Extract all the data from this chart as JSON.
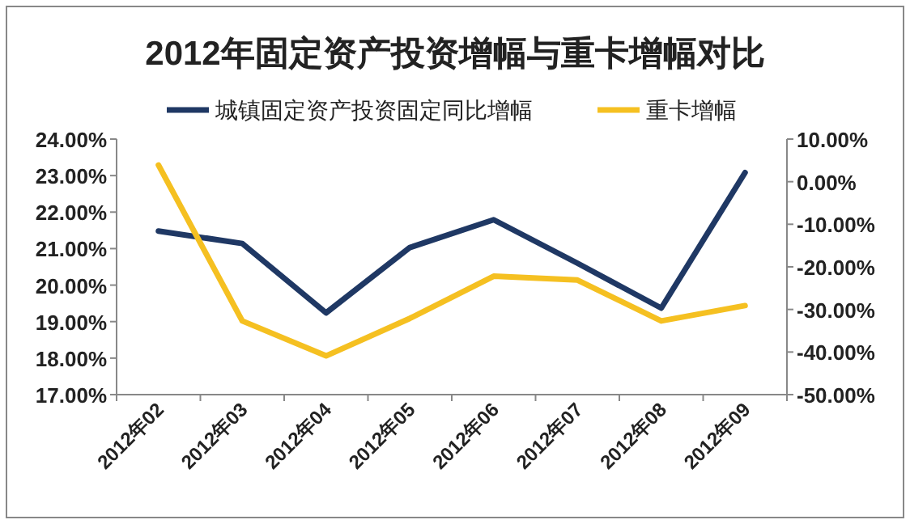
{
  "chart_data": {
    "type": "line",
    "title": "2012年固定资产投资增幅与重卡增幅对比",
    "categories": [
      "2012年02",
      "2012年03",
      "2012年04",
      "2012年05",
      "2012年06",
      "2012年07",
      "2012年08",
      "2012年09"
    ],
    "series": [
      {
        "name": "城镇固定资产投资固定同比增幅",
        "color": "#1f3864",
        "values": [
          21.48,
          21.14,
          19.24,
          21.03,
          21.79,
          20.6,
          19.37,
          23.08
        ]
      },
      {
        "name": "重卡增幅",
        "color": "#f5c021",
        "axis": "y2",
        "values": [
          3.9,
          -32.7,
          -40.9,
          -32.1,
          -22.2,
          -23.1,
          -32.7,
          -29.1
        ]
      }
    ],
    "ylim": [
      17,
      24
    ],
    "yticks": [
      {
        "value": 17,
        "label": "17.00%"
      },
      {
        "value": 18,
        "label": "18.00%"
      },
      {
        "value": 19,
        "label": "19.00%"
      },
      {
        "value": 20,
        "label": "20.00%"
      },
      {
        "value": 21,
        "label": "21.00%"
      },
      {
        "value": 22,
        "label": "22.00%"
      },
      {
        "value": 23,
        "label": "23.00%"
      },
      {
        "value": 24,
        "label": "24.00%"
      }
    ],
    "y2lim": [
      -50,
      10
    ],
    "y2ticks": [
      {
        "value": -50,
        "label": "-50.00%"
      },
      {
        "value": -40,
        "label": "-40.00%"
      },
      {
        "value": -30,
        "label": "-30.00%"
      },
      {
        "value": -20,
        "label": "-20.00%"
      },
      {
        "value": -10,
        "label": "-10.00%"
      },
      {
        "value": 0,
        "label": "0.00%"
      },
      {
        "value": 10,
        "label": "10.00%"
      }
    ],
    "grid": false,
    "legend": "top",
    "marker": "none",
    "line_style": "solid"
  }
}
